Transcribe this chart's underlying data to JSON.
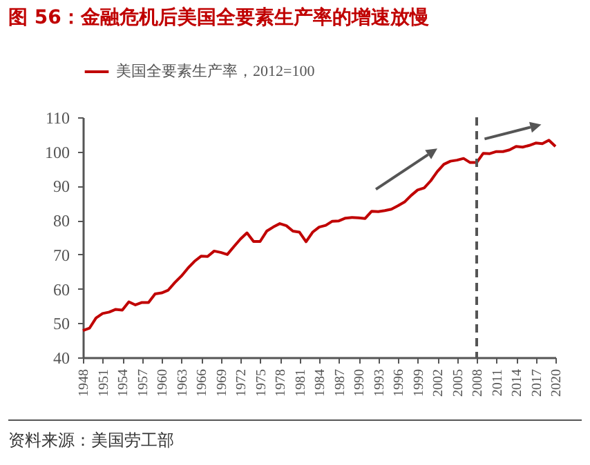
{
  "chart_data": {
    "type": "line",
    "title": "图 56：金融危机后美国全要素生产率的增速放慢",
    "x": [
      1948,
      1949,
      1950,
      1951,
      1952,
      1953,
      1954,
      1955,
      1956,
      1957,
      1958,
      1959,
      1960,
      1961,
      1962,
      1963,
      1964,
      1965,
      1966,
      1967,
      1968,
      1969,
      1970,
      1971,
      1972,
      1973,
      1974,
      1975,
      1976,
      1977,
      1978,
      1979,
      1980,
      1981,
      1982,
      1983,
      1984,
      1985,
      1986,
      1987,
      1988,
      1989,
      1990,
      1991,
      1992,
      1993,
      1994,
      1995,
      1996,
      1997,
      1998,
      1999,
      2000,
      2001,
      2002,
      2003,
      2004,
      2005,
      2006,
      2007,
      2008,
      2009,
      2010,
      2011,
      2012,
      2013,
      2014,
      2015,
      2016,
      2017,
      2018,
      2019,
      2020
    ],
    "series": [
      {
        "name": "美国全要素生产率，2012=100",
        "color": "#c00000",
        "values": [
          47.8,
          48.5,
          51.5,
          52.8,
          53.2,
          54,
          53.8,
          56.2,
          55.3,
          56,
          56,
          58.5,
          58.8,
          59.6,
          61.8,
          63.7,
          66,
          68,
          69.5,
          69.4,
          71,
          70.6,
          70,
          72.3,
          74.5,
          76.3,
          73.8,
          73.8,
          76.8,
          78,
          79,
          78.4,
          76.8,
          76.5,
          73.7,
          76.5,
          78,
          78.5,
          79.7,
          79.8,
          80.6,
          80.8,
          80.7,
          80.5,
          82.6,
          82.5,
          82.8,
          83.2,
          84.2,
          85.3,
          87.2,
          88.8,
          89.4,
          91.5,
          94.2,
          96.3,
          97.2,
          97.5,
          98,
          96.8,
          96.8,
          99.5,
          99.4,
          100,
          100,
          100.5,
          101.5,
          101.3,
          101.8,
          102.5,
          102.3,
          103.3,
          101.5
        ]
      }
    ],
    "xlim": [
      1948,
      2020
    ],
    "xticks": [
      1948,
      1951,
      1954,
      1957,
      1960,
      1963,
      1966,
      1969,
      1972,
      1975,
      1978,
      1981,
      1984,
      1987,
      1990,
      1993,
      1996,
      1999,
      2002,
      2005,
      2008,
      2011,
      2014,
      2017,
      2020
    ],
    "ylim": [
      40,
      110
    ],
    "yticks": [
      40,
      50,
      60,
      70,
      80,
      90,
      100,
      110
    ],
    "ref_lines": [
      {
        "axis": "x",
        "value": 2008,
        "color": "#555555",
        "line_style": "dashed"
      }
    ],
    "legend": "top",
    "grid": false,
    "marker": "none",
    "line_style": "solid",
    "annotations": [
      "资料来源：美国劳工部"
    ]
  }
}
